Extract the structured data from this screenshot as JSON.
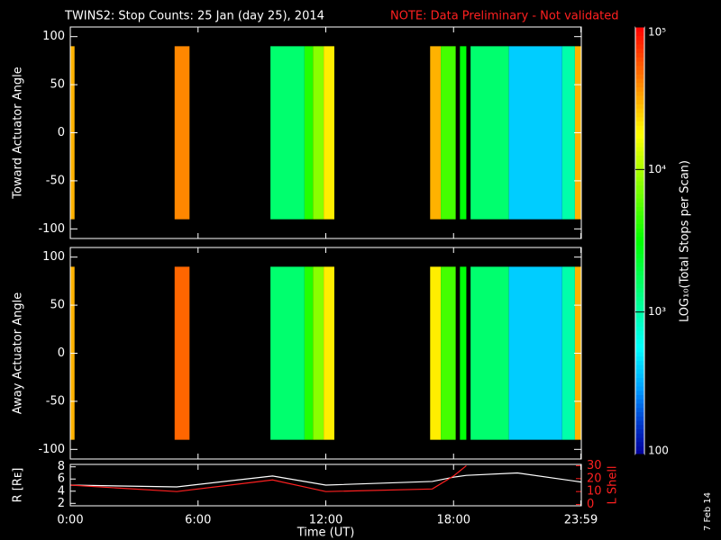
{
  "title": "TWINS2: Stop Counts: 25 Jan (day  25), 2014",
  "note": "NOTE: Data Preliminary - Not validated",
  "stamp": "7 Feb 14",
  "colorbar": {
    "label": "LOG₁₀(Total Stops per Scan)",
    "lim": [
      100,
      100000
    ],
    "log": true,
    "ticks": [
      {
        "value": 100,
        "label": "100"
      },
      {
        "value": 1000,
        "label": "10³"
      },
      {
        "value": 10000,
        "label": "10⁴"
      },
      {
        "value": 100000,
        "label": "10⁵"
      }
    ]
  },
  "chart_data": [
    {
      "type": "heatmap",
      "ylabel": "Toward Actuator Angle",
      "xlim": [
        0,
        24
      ],
      "ylim": [
        -110,
        110
      ],
      "yticks": [
        -100,
        -50,
        0,
        50,
        100
      ],
      "angle_range": [
        -90,
        90
      ],
      "x_edges": [
        0,
        0.2,
        4.9,
        5.6,
        9.4,
        11.0,
        11.4,
        11.9,
        12.4,
        16.9,
        17.4,
        18.1,
        18.3,
        18.6,
        18.8,
        20.6,
        23.1,
        23.7,
        24
      ],
      "values": [
        30000,
        null,
        40000,
        null,
        1500,
        4000,
        8000,
        20000,
        null,
        30000,
        5000,
        null,
        3000,
        null,
        1500,
        400,
        1000,
        30000
      ]
    },
    {
      "type": "heatmap",
      "ylabel": "Away Actuator Angle",
      "xlim": [
        0,
        24
      ],
      "ylim": [
        -110,
        110
      ],
      "yticks": [
        -100,
        -50,
        0,
        50,
        100
      ],
      "angle_range": [
        -90,
        90
      ],
      "x_edges": [
        0,
        0.2,
        4.9,
        5.6,
        9.4,
        11.0,
        11.4,
        11.9,
        12.4,
        16.9,
        17.4,
        18.1,
        18.3,
        18.6,
        18.8,
        20.6,
        23.1,
        23.7,
        24
      ],
      "values": [
        30000,
        null,
        50000,
        null,
        1500,
        4000,
        8000,
        20000,
        null,
        20000,
        5000,
        null,
        3000,
        null,
        1500,
        400,
        1000,
        30000
      ]
    },
    {
      "type": "line",
      "xlabel": "Time (UT)",
      "ylabel": "R [Rᴇ]",
      "y2label": "L Shell",
      "xlim": [
        0,
        24
      ],
      "ylim": [
        1.6,
        8.4
      ],
      "y2lim": [
        -1,
        31
      ],
      "xticks": [
        {
          "value": 0,
          "label": "0:00"
        },
        {
          "value": 6,
          "label": "6:00"
        },
        {
          "value": 12,
          "label": "12:00"
        },
        {
          "value": 18,
          "label": "18:00"
        },
        {
          "value": 23.98,
          "label": "23:59"
        }
      ],
      "yticks": [
        2,
        4,
        6,
        8
      ],
      "y2ticks": [
        0,
        10,
        20,
        30
      ],
      "x": [
        0,
        5,
        9.5,
        12,
        17,
        18,
        18.6,
        21,
        24
      ],
      "series": [
        {
          "color": "#ffffff",
          "values": [
            5,
            4.7,
            6.5,
            5,
            5.6,
            6.3,
            6.6,
            7,
            5.5
          ]
        },
        {
          "color": "#ff2020",
          "axis": "y2",
          "values": [
            15,
            10,
            19,
            10,
            12,
            22,
            30,
            null,
            null
          ]
        }
      ]
    }
  ]
}
